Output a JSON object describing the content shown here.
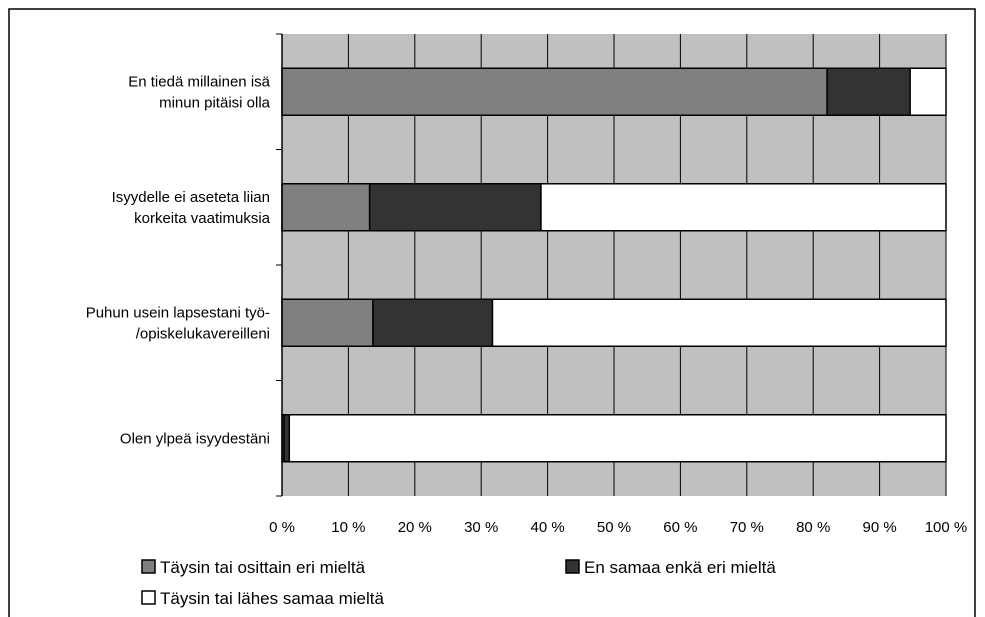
{
  "chart_data": {
    "type": "bar",
    "orientation": "horizontal",
    "stacked": "percent",
    "categories": [
      [
        "En tiedä millainen isä",
        "minun pitäisi olla"
      ],
      [
        "Isyydelle ei aseteta liian",
        "korkeita vaatimuksia"
      ],
      [
        "Puhun usein lapsestani työ-",
        "/opiskelukavereilleni"
      ],
      [
        "Olen ylpeä isyydestäni"
      ]
    ],
    "series": [
      {
        "name": "Täysin tai osittain eri mieltä",
        "values": [
          82.1,
          13.2,
          13.7,
          0.3
        ],
        "color": "#808080"
      },
      {
        "name": "En samaa enkä eri mieltä",
        "values": [
          12.5,
          25.8,
          18.0,
          0.8
        ],
        "color": "#333333"
      },
      {
        "name": "Täysin tai lähes samaa mieltä",
        "values": [
          5.4,
          61.0,
          68.3,
          98.9
        ],
        "color": "#ffffff"
      }
    ],
    "x_ticks": [
      "0 %",
      "10 %",
      "20 %",
      "30 %",
      "40 %",
      "50 %",
      "60 %",
      "70 %",
      "80 %",
      "90 %",
      "100 %"
    ],
    "xlim": [
      0,
      100
    ],
    "grid": true,
    "plot_background": "#c0c0c0",
    "legend_position": "bottom"
  }
}
